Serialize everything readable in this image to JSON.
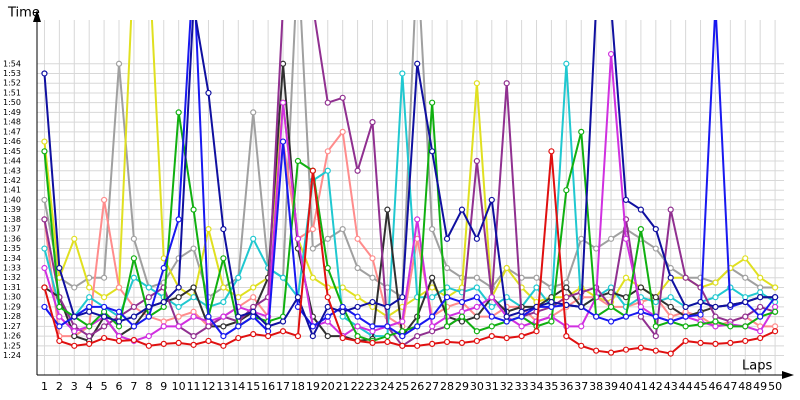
{
  "chart_data": {
    "type": "line",
    "y_label": "Time",
    "x_label": "Laps",
    "grid": true,
    "x": [
      1,
      2,
      3,
      4,
      5,
      6,
      7,
      8,
      9,
      10,
      11,
      12,
      13,
      14,
      15,
      16,
      17,
      18,
      19,
      20,
      21,
      22,
      23,
      24,
      25,
      26,
      27,
      28,
      29,
      30,
      31,
      32,
      33,
      34,
      35,
      36,
      37,
      38,
      39,
      40,
      41,
      42,
      43,
      44,
      45,
      46,
      47,
      48,
      49,
      50
    ],
    "xlim": [
      0.5,
      51
    ],
    "xticks": [
      1,
      2,
      3,
      4,
      5,
      6,
      7,
      8,
      9,
      10,
      11,
      12,
      13,
      14,
      15,
      16,
      17,
      18,
      19,
      20,
      21,
      22,
      23,
      24,
      25,
      26,
      27,
      28,
      29,
      30,
      31,
      32,
      33,
      34,
      35,
      36,
      37,
      38,
      39,
      40,
      41,
      42,
      43,
      44,
      45,
      46,
      47,
      48,
      49,
      50
    ],
    "ylim": [
      82,
      118.5
    ],
    "yticks": [
      {
        "value": 84,
        "label": "1:24"
      },
      {
        "value": 85,
        "label": "1:25"
      },
      {
        "value": 86,
        "label": "1:26"
      },
      {
        "value": 87,
        "label": "1:27"
      },
      {
        "value": 88,
        "label": "1:28"
      },
      {
        "value": 89,
        "label": "1:29"
      },
      {
        "value": 90,
        "label": "1:30"
      },
      {
        "value": 91,
        "label": "1:31"
      },
      {
        "value": 92,
        "label": "1:32"
      },
      {
        "value": 93,
        "label": "1:33"
      },
      {
        "value": 94,
        "label": "1:34"
      },
      {
        "value": 95,
        "label": "1:35"
      },
      {
        "value": 96,
        "label": "1:36"
      },
      {
        "value": 97,
        "label": "1:37"
      },
      {
        "value": 98,
        "label": "1:38"
      },
      {
        "value": 99,
        "label": "1:39"
      },
      {
        "value": 100,
        "label": "1:40"
      },
      {
        "value": 101,
        "label": "1:41"
      },
      {
        "value": 102,
        "label": "1:42"
      },
      {
        "value": 103,
        "label": "1:43"
      },
      {
        "value": 104,
        "label": "1:44"
      },
      {
        "value": 105,
        "label": "1:45"
      },
      {
        "value": 106,
        "label": "1:46"
      },
      {
        "value": 107,
        "label": "1:47"
      },
      {
        "value": 108,
        "label": "1:48"
      },
      {
        "value": 109,
        "label": "1:49"
      },
      {
        "value": 110,
        "label": "1:50"
      },
      {
        "value": 111,
        "label": "1:51"
      },
      {
        "value": 112,
        "label": "1:52"
      },
      {
        "value": 113,
        "label": "1:53"
      },
      {
        "value": 114,
        "label": "1:54"
      }
    ],
    "series": [
      {
        "color": "#a0a0a0",
        "values": [
          100,
          92,
          91,
          92,
          92,
          114,
          96,
          91,
          91.5,
          94,
          95,
          90,
          91,
          92,
          109,
          93,
          92,
          125,
          95,
          96,
          97,
          93,
          92,
          91,
          90,
          125,
          97,
          93,
          92,
          92,
          91,
          93,
          92,
          92,
          91,
          91.5,
          96,
          95,
          96,
          97,
          96,
          95,
          93,
          92,
          92,
          91.5,
          93,
          92,
          91,
          91
        ]
      },
      {
        "color": "#e0e020",
        "values": [
          106,
          92,
          96,
          91,
          90,
          91,
          125,
          125,
          94,
          91,
          90,
          97,
          91,
          90,
          91,
          92,
          110,
          96,
          92,
          91,
          91,
          90,
          89,
          88,
          89,
          90,
          91,
          90,
          91,
          112,
          90,
          93,
          91,
          89.5,
          90,
          90,
          91,
          90,
          89.5,
          92,
          91,
          90,
          92,
          92,
          91,
          91.5,
          93,
          94,
          92,
          91
        ]
      },
      {
        "color": "#ff8c8c",
        "values": [
          98,
          86,
          86,
          87,
          100,
          91,
          89,
          88,
          87.5,
          88,
          88.5,
          87,
          88,
          89,
          90,
          88,
          106,
          96,
          97,
          105,
          107,
          96,
          94,
          88,
          87,
          96,
          88,
          89,
          89.5,
          88,
          88,
          89,
          89,
          87.5,
          88,
          89,
          90,
          90,
          89,
          89,
          89.5,
          90,
          88,
          88.5,
          88,
          87,
          87.5,
          88,
          87,
          87
        ]
      },
      {
        "color": "#20c8d0",
        "values": [
          95,
          89,
          88,
          90,
          89,
          88,
          92,
          91,
          90,
          89,
          90,
          89,
          89.5,
          92,
          96,
          93,
          92,
          90,
          102,
          103,
          88,
          87,
          86,
          86,
          113,
          90,
          90,
          91,
          90.5,
          91,
          89,
          90,
          89,
          91,
          89,
          114,
          89,
          90,
          91,
          89,
          90,
          89.5,
          90,
          89,
          89.5,
          90,
          91,
          90,
          90.5,
          89.5
        ]
      },
      {
        "color": "#303030",
        "values": [
          91,
          90,
          86,
          85.5,
          88,
          86,
          87,
          89,
          89.5,
          90,
          91,
          87,
          87,
          87.5,
          88.5,
          92,
          114,
          95,
          88,
          86,
          86,
          85.5,
          85.7,
          99,
          86,
          88,
          92,
          88,
          87.5,
          88,
          90,
          88.5,
          89,
          89,
          90,
          91,
          89,
          90,
          90.5,
          90,
          91,
          90,
          89,
          88,
          88.5,
          89,
          89.2,
          89.5,
          90,
          90
        ]
      },
      {
        "color": "#903090",
        "values": [
          98,
          90,
          87,
          86,
          87,
          88,
          89,
          90,
          91,
          87,
          86,
          87,
          88,
          87.5,
          89,
          90,
          120,
          120,
          120,
          110,
          110.5,
          103,
          108,
          87,
          85,
          86,
          86.5,
          87,
          88,
          104,
          90,
          112,
          88,
          88.5,
          89,
          90,
          90.5,
          91,
          89,
          98,
          88,
          86,
          99,
          92,
          91,
          88,
          87.5,
          88,
          89,
          88.5
        ]
      },
      {
        "color": "#d030e0",
        "values": [
          93,
          88,
          86.5,
          87,
          88,
          86,
          85.5,
          86,
          87,
          87,
          88,
          87.5,
          88,
          89,
          88.5,
          88,
          110,
          96,
          87,
          87.5,
          86,
          87,
          86.5,
          87,
          87.5,
          98,
          87,
          88,
          88.5,
          89,
          90,
          88,
          87,
          87.5,
          88,
          87,
          87,
          90,
          115,
          96,
          89,
          88,
          87.5,
          88,
          87.5,
          87,
          87.2,
          87,
          86.5,
          89
        ]
      },
      {
        "color": "#10b010",
        "values": [
          105,
          89,
          88,
          87,
          88.5,
          87,
          94,
          88,
          89,
          109,
          99,
          88,
          94,
          87,
          88,
          87.5,
          88,
          104,
          103,
          93,
          89,
          86,
          85.5,
          86,
          86.5,
          87,
          110,
          87,
          88,
          86.5,
          87,
          87.5,
          88,
          87,
          87.5,
          101,
          107,
          88,
          89,
          88,
          97,
          87,
          87.5,
          87,
          87.2,
          87.5,
          87,
          87,
          88,
          88.5
        ]
      },
      {
        "color": "#1818f0",
        "values": [
          89,
          87,
          88,
          89,
          89,
          88.5,
          87,
          88,
          93,
          98,
          124,
          88,
          86,
          87,
          88,
          86.5,
          106,
          89,
          87,
          88,
          89,
          88,
          87,
          87,
          86,
          87,
          88,
          90,
          89.5,
          90,
          88,
          87.5,
          88,
          89,
          89,
          89.2,
          89,
          88,
          87.5,
          88,
          88.5,
          88,
          87.5,
          88,
          88.2,
          120,
          89,
          89.5,
          88,
          90
        ]
      },
      {
        "color": "#1010a0",
        "values": [
          113,
          93,
          88,
          88.5,
          88,
          87.5,
          88,
          89,
          89.5,
          91,
          120,
          111,
          97,
          88,
          88.5,
          87,
          87.5,
          90,
          86,
          89,
          88.5,
          89,
          89.5,
          89,
          90,
          114,
          105,
          96,
          99,
          96,
          100,
          88,
          88.5,
          89,
          89.5,
          89.2,
          89,
          120,
          120,
          100,
          99,
          97,
          92,
          89,
          89.5,
          89,
          89.2,
          89.5,
          90,
          90
        ]
      },
      {
        "color": "#e01010",
        "values": [
          91,
          85.5,
          85,
          85.2,
          85.8,
          85.5,
          85.6,
          85,
          85.2,
          85.3,
          85.1,
          85.5,
          85,
          85.8,
          86.2,
          86,
          86.5,
          86,
          103,
          90,
          85.8,
          85.5,
          85.3,
          85.4,
          85,
          85,
          85.2,
          85.4,
          85.3,
          85.5,
          86,
          85.8,
          86,
          86.5,
          105,
          86,
          85,
          84.5,
          84.3,
          84.6,
          84.8,
          84.5,
          84.2,
          85.5,
          85.3,
          85.2,
          85.3,
          85.5,
          85.8,
          86.5
        ]
      }
    ]
  }
}
